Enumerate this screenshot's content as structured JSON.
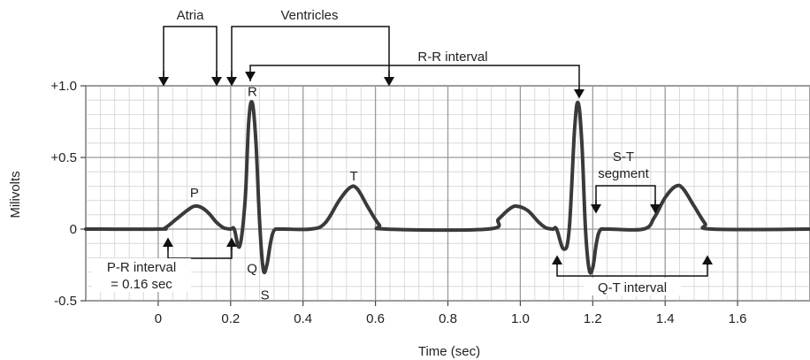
{
  "chart_data": {
    "type": "line",
    "title": "",
    "xlabel": "Time (sec)",
    "ylabel": "Milivolts",
    "xlim": [
      -0.2,
      1.8
    ],
    "ylim": [
      -0.5,
      1.0
    ],
    "grid": true,
    "x_ticks": [
      "0",
      "0.2",
      "0.4",
      "0.6",
      "0.8",
      "1.0",
      "1.2",
      "1.4",
      "1.6"
    ],
    "x_tick_values": [
      0,
      0.2,
      0.4,
      0.6,
      0.8,
      1.0,
      1.2,
      1.4,
      1.6
    ],
    "y_ticks": [
      "+1.0",
      "+0.5",
      "0",
      "-0.5"
    ],
    "y_tick_values": [
      1.0,
      0.5,
      0,
      -0.5
    ],
    "series": [
      {
        "values": [
          [
            -0.2,
            0
          ],
          [
            0.0,
            0
          ],
          [
            0.02,
            0.01
          ],
          [
            0.05,
            0.07
          ],
          [
            0.08,
            0.13
          ],
          [
            0.1,
            0.16
          ],
          [
            0.12,
            0.15
          ],
          [
            0.14,
            0.11
          ],
          [
            0.16,
            0.05
          ],
          [
            0.18,
            0.01
          ],
          [
            0.2,
            0
          ],
          [
            0.21,
            0
          ],
          [
            0.225,
            -0.12
          ],
          [
            0.24,
            0.2
          ],
          [
            0.25,
            0.75
          ],
          [
            0.26,
            0.88
          ],
          [
            0.27,
            0.6
          ],
          [
            0.28,
            0.05
          ],
          [
            0.29,
            -0.28
          ],
          [
            0.3,
            -0.25
          ],
          [
            0.31,
            -0.1
          ],
          [
            0.32,
            -0.01
          ],
          [
            0.34,
            0
          ],
          [
            0.42,
            0
          ],
          [
            0.46,
            0.04
          ],
          [
            0.5,
            0.2
          ],
          [
            0.53,
            0.29
          ],
          [
            0.55,
            0.28
          ],
          [
            0.58,
            0.15
          ],
          [
            0.61,
            0.03
          ],
          [
            0.63,
            0
          ],
          [
            0.91,
            0
          ],
          [
            0.94,
            0.07
          ],
          [
            0.97,
            0.14
          ],
          [
            0.99,
            0.16
          ],
          [
            1.02,
            0.13
          ],
          [
            1.05,
            0.05
          ],
          [
            1.07,
            0.01
          ],
          [
            1.09,
            0
          ],
          [
            1.1,
            0
          ],
          [
            1.12,
            -0.14
          ],
          [
            1.135,
            0
          ],
          [
            1.15,
            0.7
          ],
          [
            1.16,
            0.88
          ],
          [
            1.17,
            0.6
          ],
          [
            1.18,
            0.0
          ],
          [
            1.19,
            -0.28
          ],
          [
            1.2,
            -0.27
          ],
          [
            1.21,
            -0.1
          ],
          [
            1.22,
            -0.01
          ],
          [
            1.24,
            0
          ],
          [
            1.34,
            0
          ],
          [
            1.37,
            0.08
          ],
          [
            1.4,
            0.22
          ],
          [
            1.43,
            0.3
          ],
          [
            1.45,
            0.28
          ],
          [
            1.48,
            0.16
          ],
          [
            1.51,
            0.04
          ],
          [
            1.53,
            0
          ],
          [
            1.8,
            0
          ]
        ]
      }
    ],
    "wave_labels": [
      {
        "text": "P",
        "x": 0.1,
        "y": 0.16
      },
      {
        "text": "Q",
        "x": 0.23,
        "y": -0.12
      },
      {
        "text": "R",
        "x": 0.26,
        "y": 0.88
      },
      {
        "text": "S",
        "x": 0.29,
        "y": -0.28
      },
      {
        "text": "T",
        "x": 0.54,
        "y": 0.29
      }
    ],
    "annotations": {
      "atria": "Atria",
      "ventricles": "Ventricles",
      "rr_interval": "R-R interval",
      "st_segment_line1": "S-T",
      "st_segment_line2": "segment",
      "pr_interval_line1": "P-R interval",
      "pr_interval_line2": "= 0.16 sec",
      "qt_interval": "Q-T interval"
    }
  }
}
